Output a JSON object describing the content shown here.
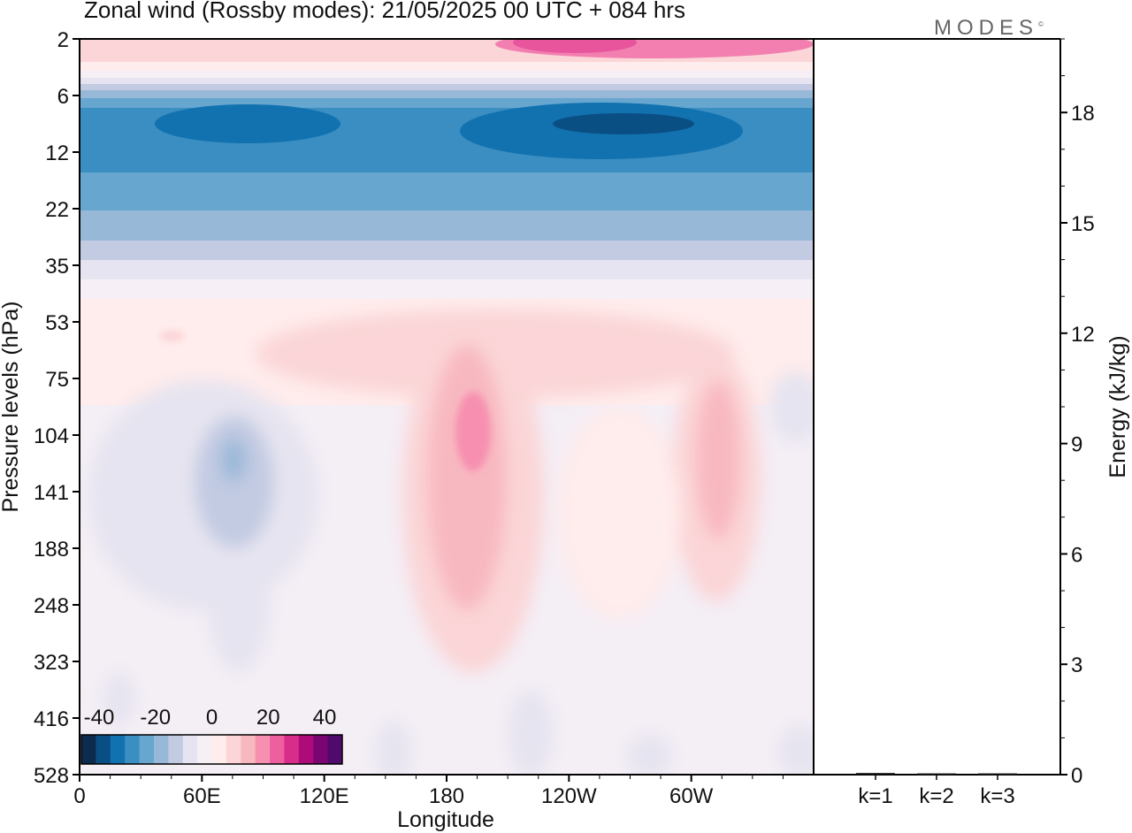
{
  "header": {
    "title": "Zonal wind (Rossby modes):  21/05/2025  00 UTC  + 084 hrs",
    "logo": "MODES",
    "logo_mark": "©"
  },
  "chart_data": [
    {
      "type": "heatmap",
      "title": "Zonal wind (Rossby modes):  21/05/2025  00 UTC  + 084 hrs",
      "xlabel": "Longitude",
      "ylabel": "Pressure levels (hPa)",
      "x_ticks": [
        "0",
        "60E",
        "120E",
        "180",
        "120W",
        "60W"
      ],
      "y_ticks": [
        "2",
        "6",
        "12",
        "22",
        "35",
        "53",
        "75",
        "104",
        "141",
        "188",
        "248",
        "323",
        "416",
        "528"
      ],
      "colorbar": {
        "tick_labels": [
          "-40",
          "-20",
          "0",
          "20",
          "40"
        ],
        "colors": [
          "#0d2b4e",
          "#0a4f83",
          "#1272b0",
          "#3a8ec2",
          "#66a6cf",
          "#98b8d8",
          "#c2cbe2",
          "#e6e4f0",
          "#f6f0f6",
          "#ffecec",
          "#fbd5d7",
          "#f8b8c0",
          "#f790b0",
          "#ee5fa0",
          "#d92d8c",
          "#ad0b7a",
          "#7a0571",
          "#4f0a6b"
        ]
      }
    },
    {
      "type": "bar",
      "ylabel": "Energy (kJ/kg)",
      "categories": [
        "k=1",
        "k=2",
        "k=3"
      ],
      "values": [
        0.02,
        0.01,
        0.01
      ],
      "y_ticks": [
        "0",
        "3",
        "6",
        "9",
        "12",
        "15",
        "18"
      ],
      "ylim": [
        0,
        20
      ]
    }
  ]
}
